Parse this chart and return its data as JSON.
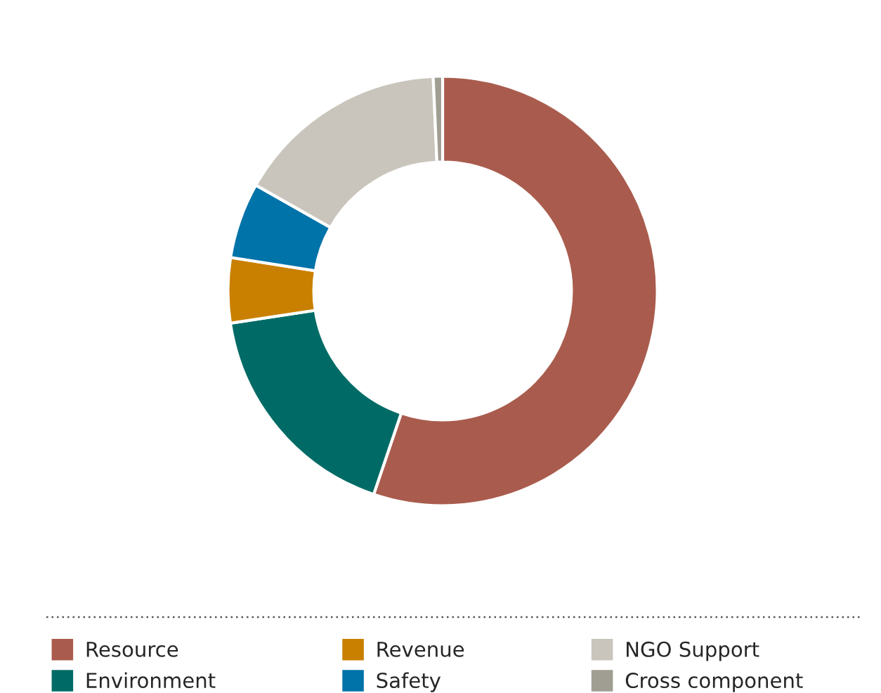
{
  "chart_data": {
    "type": "donut",
    "categories": [
      "Resource",
      "Environment",
      "Revenue",
      "Safety",
      "NGO Support",
      "Cross component"
    ],
    "values": [
      55.2,
      17.4,
      4.9,
      5.7,
      16.1,
      0.7
    ],
    "colors": [
      "#a95c4d",
      "#006b66",
      "#c98000",
      "#0073a8",
      "#c9c5bc",
      "#a09d92"
    ],
    "legend": "bottom"
  }
}
